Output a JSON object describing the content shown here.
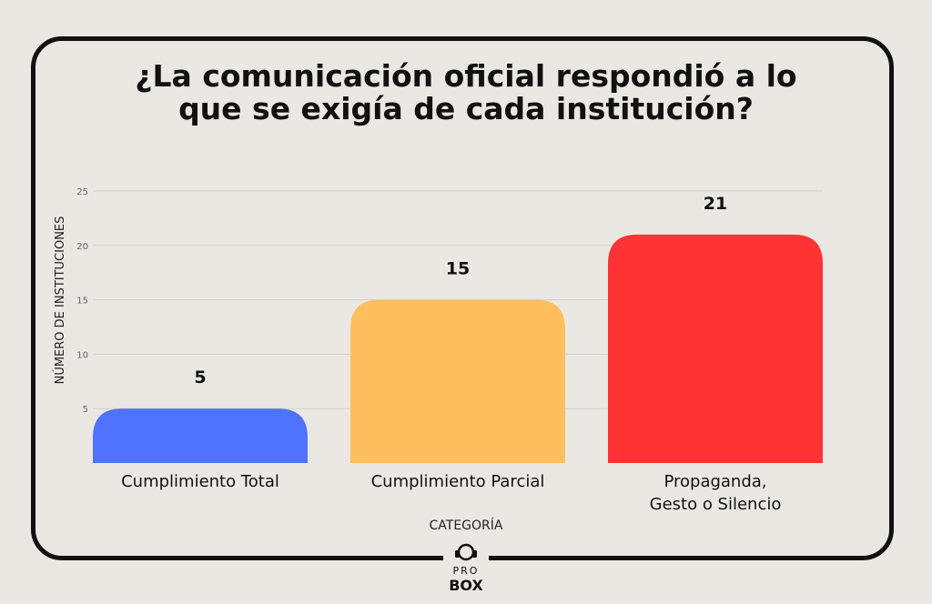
{
  "title": "¿La comunicación oficial respondió a lo que se exigía de cada institución?",
  "logo": {
    "text_top": "PRO",
    "text_bottom": "BOX"
  },
  "chart_data": {
    "type": "bar",
    "title": "¿La comunicación oficial respondió a lo que se exigía de cada institución?",
    "xlabel": "CATEGORÍA",
    "ylabel": "NÚMERO DE INSTITUCIONES",
    "categories": [
      [
        "Cumplimiento Total"
      ],
      [
        "Cumplimiento Parcial"
      ],
      [
        "Propaganda,",
        "Gesto o Silencio"
      ]
    ],
    "values": [
      5,
      15,
      21
    ],
    "colors": [
      "#4f72ff",
      "#ffbf5c",
      "#ff3333"
    ],
    "yticks": [
      5,
      10,
      15,
      20,
      25
    ],
    "ylim": [
      0,
      25
    ],
    "grid": true,
    "legend": "none"
  }
}
